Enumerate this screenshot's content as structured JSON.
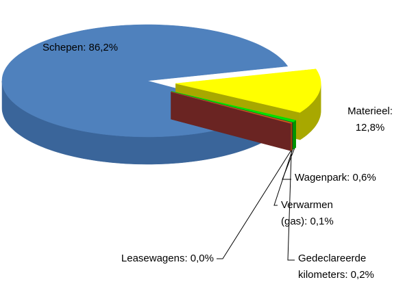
{
  "chart_data": {
    "type": "pie3d",
    "categories": [
      "Schepen",
      "Materieel",
      "Wagenpark",
      "Verwarmen (gas)",
      "Gedeclareerde kilometers",
      "Leasewagens"
    ],
    "values": [
      86.2,
      12.8,
      0.6,
      0.1,
      0.2,
      0.0
    ],
    "value_labels": [
      [
        "Schepen: 86,2%"
      ],
      [
        "Materieel:",
        "12,8%"
      ],
      [
        "Wagenpark: 0,6%"
      ],
      [
        "Verwarmen",
        "(gas): 0,1%"
      ],
      [
        "Gedeclareerde",
        "kilometers: 0,2%"
      ],
      [
        "Leasewagens: 0,0%"
      ]
    ],
    "colors": [
      "#4f81bd",
      "#ffff00",
      "#00e000",
      "#403152",
      "#e36c09",
      "#953735"
    ],
    "side_colors": [
      "#3a659a",
      "#a8a800",
      "#009400",
      "#2a2036",
      "#a34d06",
      "#6a2422"
    ]
  }
}
